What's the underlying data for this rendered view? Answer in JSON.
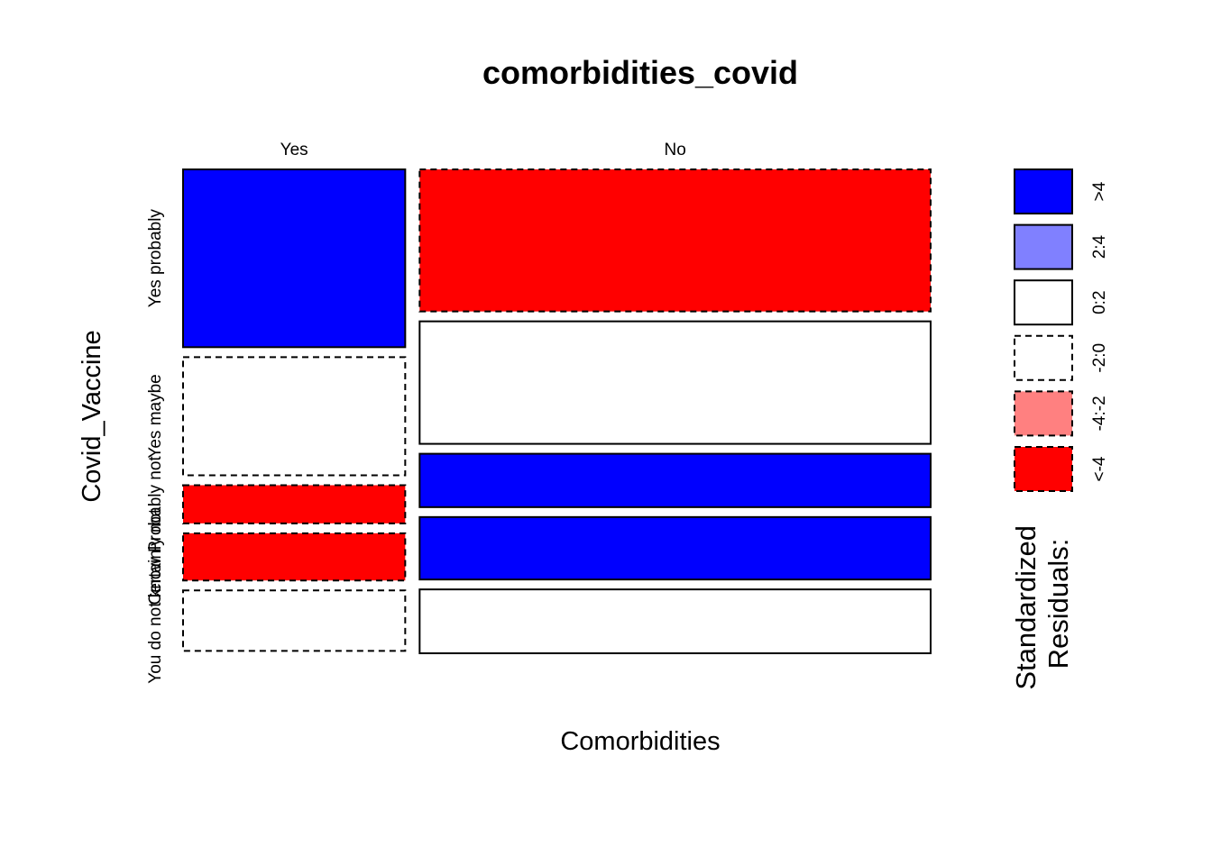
{
  "chart_data": {
    "type": "mosaic",
    "title": "comorbidities_covid",
    "xlabel": "Comorbidities",
    "ylabel": "Covid_Vaccine",
    "x_categories": [
      "Yes",
      "No"
    ],
    "y_categories": [
      "Yes probably",
      "Yes maybe",
      "Probably not",
      "Certainly not",
      "You do not know"
    ],
    "x_proportions": [
      0.303,
      0.697
    ],
    "y_proportions": {
      "Yes": [
        0.373,
        0.248,
        0.08,
        0.099,
        0.127
      ],
      "No": [
        0.298,
        0.257,
        0.112,
        0.131,
        0.134
      ]
    },
    "residual_class": {
      "Yes": [
        ">4",
        "-2:0",
        "<-4",
        "<-4",
        "-2:0"
      ],
      "No": [
        "<-4",
        "0:2",
        ">4",
        ">4",
        "0:2"
      ]
    },
    "legend": {
      "title": "Standardized\nResiduals:",
      "title_lines": [
        "Standardized",
        "Residuals:"
      ],
      "entries": [
        {
          "label": ">4",
          "color": "#0000ff",
          "dashed": false
        },
        {
          "label": "2:4",
          "color": "#8080ff",
          "dashed": false
        },
        {
          "label": "0:2",
          "color": "#ffffff",
          "dashed": false
        },
        {
          "label": "-2:0",
          "color": "#ffffff",
          "dashed": true
        },
        {
          "label": "-4:-2",
          "color": "#ff8080",
          "dashed": true
        },
        {
          "label": "<-4",
          "color": "#ff0000",
          "dashed": true
        }
      ]
    }
  }
}
